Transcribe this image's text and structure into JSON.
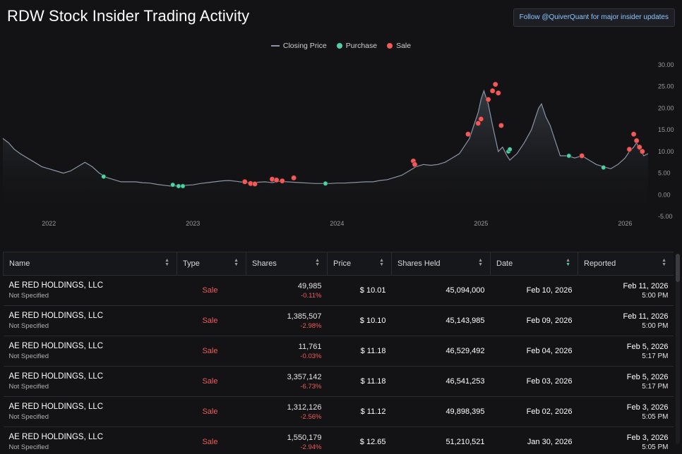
{
  "page": {
    "title": "RDW Stock Insider Trading Activity",
    "follow_button": "Follow @QuiverQuant for major insider updates"
  },
  "legend": {
    "closing_price": "Closing Price",
    "purchase": "Purchase",
    "sale": "Sale"
  },
  "colors": {
    "purchase": "#4fd1a5",
    "sale": "#ef5b5b",
    "line": "#8a94a6",
    "link": "#8fc6ff"
  },
  "chart_data": {
    "type": "line",
    "title": "",
    "xlabel": "",
    "ylabel": "",
    "x_tick_labels": [
      "2022",
      "2023",
      "2024",
      "2025",
      "2026"
    ],
    "y_tick_labels": [
      "30.00",
      "25.00",
      "20.00",
      "15.00",
      "10.00",
      "5.00",
      "0.00",
      "-5.00"
    ],
    "ylim": [
      -5,
      30
    ],
    "xlim": [
      2021.68,
      2026.16
    ],
    "grid": false,
    "legend_position": "top-center",
    "series": [
      {
        "name": "Closing Price",
        "x": [
          2021.68,
          2021.72,
          2021.76,
          2021.8,
          2021.85,
          2021.9,
          2021.95,
          2022.0,
          2022.05,
          2022.1,
          2022.15,
          2022.2,
          2022.25,
          2022.3,
          2022.35,
          2022.4,
          2022.45,
          2022.5,
          2022.55,
          2022.6,
          2022.65,
          2022.7,
          2022.75,
          2022.8,
          2022.85,
          2022.9,
          2022.95,
          2023.0,
          2023.05,
          2023.1,
          2023.15,
          2023.2,
          2023.25,
          2023.3,
          2023.35,
          2023.4,
          2023.45,
          2023.5,
          2023.55,
          2023.6,
          2023.65,
          2023.7,
          2023.75,
          2023.8,
          2023.85,
          2023.9,
          2023.95,
          2024.0,
          2024.05,
          2024.1,
          2024.15,
          2024.2,
          2024.25,
          2024.3,
          2024.35,
          2024.4,
          2024.45,
          2024.5,
          2024.55,
          2024.6,
          2024.65,
          2024.7,
          2024.75,
          2024.8,
          2024.85,
          2024.88,
          2024.92,
          2024.95,
          2024.98,
          2025.0,
          2025.02,
          2025.05,
          2025.08,
          2025.1,
          2025.12,
          2025.15,
          2025.18,
          2025.2,
          2025.25,
          2025.3,
          2025.35,
          2025.4,
          2025.42,
          2025.45,
          2025.48,
          2025.5,
          2025.55,
          2025.6,
          2025.65,
          2025.7,
          2025.75,
          2025.8,
          2025.85,
          2025.9,
          2025.95,
          2026.0,
          2026.03,
          2026.06,
          2026.08,
          2026.1,
          2026.13,
          2026.16
        ],
        "y": [
          13,
          12,
          10.5,
          9.5,
          8.5,
          7.5,
          6.5,
          6,
          5.5,
          5,
          5.5,
          6.5,
          7.5,
          6.5,
          5,
          4,
          3.5,
          3,
          3,
          3,
          2.8,
          2.7,
          2.4,
          2.2,
          2,
          2.1,
          2.2,
          2.3,
          2.6,
          2.8,
          3,
          3.2,
          3.3,
          3.1,
          2.9,
          2.8,
          2.9,
          3,
          2.8,
          3.1,
          3,
          2.9,
          2.8,
          2.7,
          2.6,
          2.6,
          2.6,
          2.7,
          2.7,
          2.8,
          2.9,
          3,
          3,
          3.3,
          3.5,
          4,
          4.5,
          5.5,
          6.5,
          7,
          6.8,
          7,
          7.5,
          8.5,
          9.5,
          11,
          13,
          16,
          19,
          22,
          24,
          21,
          16,
          13,
          10,
          11,
          9,
          8,
          9.5,
          12,
          15,
          20,
          21,
          18,
          16,
          14,
          9,
          9,
          8.5,
          9,
          8,
          7,
          6.5,
          6,
          7,
          8.5,
          10,
          11,
          12,
          10.5,
          9,
          9.5
        ]
      }
    ],
    "purchases": [
      {
        "x": 2022.38,
        "y": 4.2
      },
      {
        "x": 2022.86,
        "y": 2.3
      },
      {
        "x": 2022.9,
        "y": 2.0
      },
      {
        "x": 2022.93,
        "y": 2.0
      },
      {
        "x": 2023.92,
        "y": 2.6
      },
      {
        "x": 2025.19,
        "y": 10.0
      },
      {
        "x": 2025.2,
        "y": 10.5
      },
      {
        "x": 2025.61,
        "y": 9.0
      },
      {
        "x": 2025.85,
        "y": 6.3
      }
    ],
    "sales": [
      {
        "x": 2023.36,
        "y": 3.0
      },
      {
        "x": 2023.4,
        "y": 2.6
      },
      {
        "x": 2023.43,
        "y": 2.5
      },
      {
        "x": 2023.55,
        "y": 3.6
      },
      {
        "x": 2023.58,
        "y": 3.4
      },
      {
        "x": 2023.62,
        "y": 3.2
      },
      {
        "x": 2023.7,
        "y": 3.9
      },
      {
        "x": 2024.53,
        "y": 7.8
      },
      {
        "x": 2024.54,
        "y": 7.0
      },
      {
        "x": 2024.91,
        "y": 14.0
      },
      {
        "x": 2024.98,
        "y": 16.5
      },
      {
        "x": 2025.0,
        "y": 17.5
      },
      {
        "x": 2025.05,
        "y": 22.0
      },
      {
        "x": 2025.08,
        "y": 24.0
      },
      {
        "x": 2025.1,
        "y": 25.5
      },
      {
        "x": 2025.12,
        "y": 23.5
      },
      {
        "x": 2025.14,
        "y": 16.0
      },
      {
        "x": 2025.7,
        "y": 9.0
      },
      {
        "x": 2026.06,
        "y": 14.0
      },
      {
        "x": 2026.08,
        "y": 12.5
      },
      {
        "x": 2026.1,
        "y": 11.0
      },
      {
        "x": 2026.03,
        "y": 10.5
      },
      {
        "x": 2026.12,
        "y": 10.0
      }
    ]
  },
  "table": {
    "columns": [
      "Name",
      "Type",
      "Shares",
      "Price",
      "Shares Held",
      "Date",
      "Reported"
    ],
    "rows": [
      {
        "name": "AE RED HOLDINGS, LLC",
        "role": "Not Specified",
        "type": "Sale",
        "shares": "49,985",
        "pct": "-0.11%",
        "price": "$ 10.01",
        "held": "45,094,000",
        "date": "Feb 10, 2026",
        "rep_date": "Feb 11, 2026",
        "rep_time": "5:00 PM"
      },
      {
        "name": "AE RED HOLDINGS, LLC",
        "role": "Not Specified",
        "type": "Sale",
        "shares": "1,385,507",
        "pct": "-2.98%",
        "price": "$ 10.10",
        "held": "45,143,985",
        "date": "Feb 09, 2026",
        "rep_date": "Feb 11, 2026",
        "rep_time": "5:00 PM"
      },
      {
        "name": "AE RED HOLDINGS, LLC",
        "role": "Not Specified",
        "type": "Sale",
        "shares": "11,761",
        "pct": "-0.03%",
        "price": "$ 11.18",
        "held": "46,529,492",
        "date": "Feb 04, 2026",
        "rep_date": "Feb 5, 2026",
        "rep_time": "5:17 PM"
      },
      {
        "name": "AE RED HOLDINGS, LLC",
        "role": "Not Specified",
        "type": "Sale",
        "shares": "3,357,142",
        "pct": "-6.73%",
        "price": "$ 11.18",
        "held": "46,541,253",
        "date": "Feb 03, 2026",
        "rep_date": "Feb 5, 2026",
        "rep_time": "5:17 PM"
      },
      {
        "name": "AE RED HOLDINGS, LLC",
        "role": "Not Specified",
        "type": "Sale",
        "shares": "1,312,126",
        "pct": "-2.56%",
        "price": "$ 11.12",
        "held": "49,898,395",
        "date": "Feb 02, 2026",
        "rep_date": "Feb 3, 2026",
        "rep_time": "5:05 PM"
      },
      {
        "name": "AE RED HOLDINGS, LLC",
        "role": "Not Specified",
        "type": "Sale",
        "shares": "1,550,179",
        "pct": "-2.94%",
        "price": "$ 12.65",
        "held": "51,210,521",
        "date": "Jan 30, 2026",
        "rep_date": "Feb 3, 2026",
        "rep_time": "5:05 PM"
      }
    ]
  }
}
